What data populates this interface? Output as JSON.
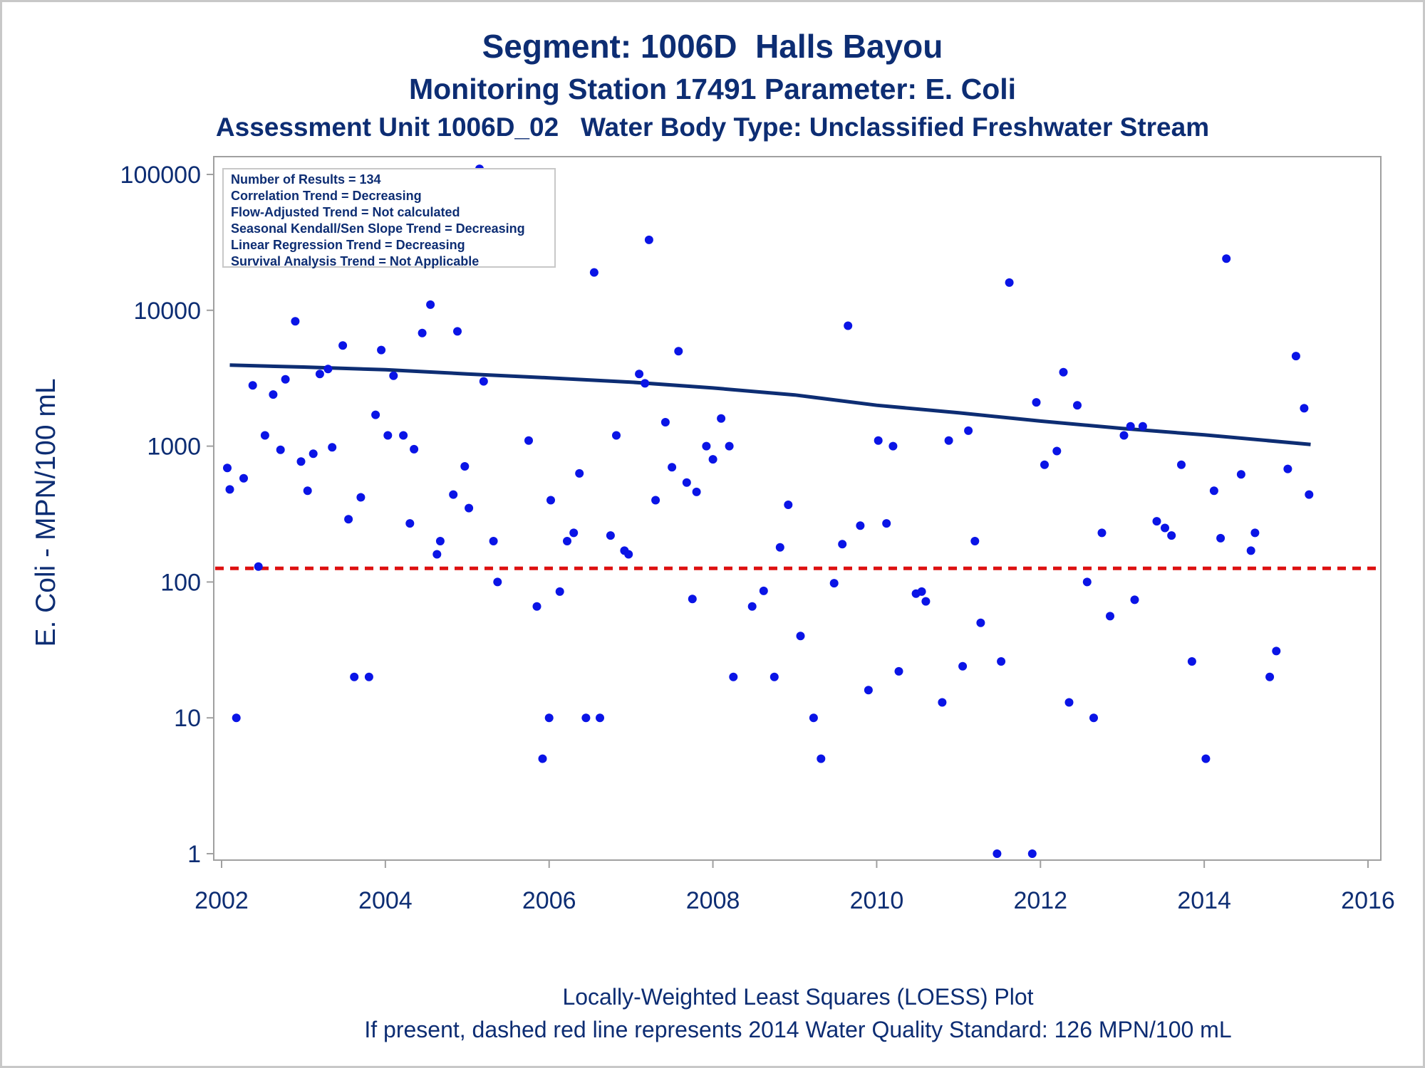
{
  "titles": {
    "line1": "Segment: 1006D  Halls Bayou",
    "line2": "Monitoring Station 17491 Parameter: E. Coli",
    "line3": "Assessment Unit 1006D_02   Water Body Type: Unclassified Freshwater Stream"
  },
  "footnotes": {
    "line1": "Locally-Weighted Least Squares (LOESS) Plot",
    "line2": "If present, dashed red line represents 2014 Water Quality Standard: 126 MPN/100 mL"
  },
  "legend_box": [
    "Number of Results = 134",
    "Correlation Trend = Decreasing",
    "Flow-Adjusted Trend = Not calculated",
    "Seasonal Kendall/Sen Slope Trend = Decreasing",
    "Linear Regression Trend = Decreasing",
    "Survival Analysis Trend = Not Applicable"
  ],
  "colors": {
    "text": "#0d2d73",
    "points": "#0a14e6",
    "loess": "#0d2d73",
    "standard": "#dd1111",
    "axis": "#a0a0a0"
  },
  "chart_data": {
    "type": "scatter",
    "ylabel": "E. Coli - MPN/100 mL",
    "xlabel": "",
    "yscale": "log",
    "xlim": [
      2002,
      2016
    ],
    "ylim": [
      1,
      100000
    ],
    "x_ticks": [
      2002,
      2004,
      2006,
      2008,
      2010,
      2012,
      2014,
      2016
    ],
    "y_ticks": [
      1,
      10,
      100,
      1000,
      10000,
      100000
    ],
    "y_tick_labels": [
      "1",
      "10",
      "100",
      "1000",
      "10000",
      "100000"
    ],
    "grid": false,
    "standard_line": {
      "y": 126,
      "style": "dashed"
    },
    "loess": {
      "x": [
        2002.1,
        2003.0,
        2004.0,
        2005.0,
        2006.0,
        2007.0,
        2008.0,
        2009.0,
        2010.0,
        2011.0,
        2012.0,
        2013.0,
        2014.0,
        2015.3
      ],
      "y": [
        3950,
        3820,
        3650,
        3400,
        3180,
        2960,
        2680,
        2380,
        2000,
        1760,
        1530,
        1350,
        1210,
        1030
      ]
    },
    "points": [
      [
        2002.07,
        690
      ],
      [
        2002.1,
        480
      ],
      [
        2002.18,
        10
      ],
      [
        2002.27,
        580
      ],
      [
        2002.38,
        2800
      ],
      [
        2002.45,
        130
      ],
      [
        2002.53,
        1200
      ],
      [
        2002.63,
        2400
      ],
      [
        2002.72,
        940
      ],
      [
        2002.78,
        3100
      ],
      [
        2002.9,
        8300
      ],
      [
        2002.97,
        770
      ],
      [
        2003.05,
        470
      ],
      [
        2003.12,
        880
      ],
      [
        2003.2,
        3400
      ],
      [
        2003.3,
        3700
      ],
      [
        2003.35,
        980
      ],
      [
        2003.48,
        5500
      ],
      [
        2003.55,
        290
      ],
      [
        2003.62,
        20
      ],
      [
        2003.7,
        420
      ],
      [
        2003.8,
        20
      ],
      [
        2003.88,
        1700
      ],
      [
        2003.95,
        5100
      ],
      [
        2004.03,
        1200
      ],
      [
        2004.1,
        3300
      ],
      [
        2004.22,
        1200
      ],
      [
        2004.3,
        270
      ],
      [
        2004.35,
        950
      ],
      [
        2004.45,
        6800
      ],
      [
        2004.55,
        11000
      ],
      [
        2004.63,
        160
      ],
      [
        2004.67,
        200
      ],
      [
        2004.83,
        440
      ],
      [
        2004.88,
        7000
      ],
      [
        2004.97,
        710
      ],
      [
        2005.02,
        350
      ],
      [
        2005.15,
        110000
      ],
      [
        2005.2,
        3000
      ],
      [
        2005.32,
        200
      ],
      [
        2005.37,
        100
      ],
      [
        2005.75,
        1100
      ],
      [
        2005.85,
        66
      ],
      [
        2005.92,
        5
      ],
      [
        2006.0,
        10
      ],
      [
        2006.02,
        400
      ],
      [
        2006.13,
        85
      ],
      [
        2006.22,
        200
      ],
      [
        2006.3,
        230
      ],
      [
        2006.37,
        630
      ],
      [
        2006.45,
        10
      ],
      [
        2006.55,
        19000
      ],
      [
        2006.62,
        10
      ],
      [
        2006.75,
        220
      ],
      [
        2006.82,
        1200
      ],
      [
        2006.92,
        170
      ],
      [
        2006.97,
        160
      ],
      [
        2007.1,
        3400
      ],
      [
        2007.17,
        2900
      ],
      [
        2007.22,
        33000
      ],
      [
        2007.3,
        400
      ],
      [
        2007.42,
        1500
      ],
      [
        2007.5,
        700
      ],
      [
        2007.58,
        5000
      ],
      [
        2007.68,
        540
      ],
      [
        2007.75,
        75
      ],
      [
        2007.8,
        460
      ],
      [
        2007.92,
        1000
      ],
      [
        2008.0,
        800
      ],
      [
        2008.1,
        1600
      ],
      [
        2008.2,
        1000
      ],
      [
        2008.25,
        20
      ],
      [
        2008.48,
        66
      ],
      [
        2008.62,
        86
      ],
      [
        2008.75,
        20
      ],
      [
        2008.82,
        180
      ],
      [
        2008.92,
        370
      ],
      [
        2009.07,
        40
      ],
      [
        2009.23,
        10
      ],
      [
        2009.32,
        5
      ],
      [
        2009.48,
        98
      ],
      [
        2009.58,
        190
      ],
      [
        2009.65,
        7700
      ],
      [
        2009.8,
        260
      ],
      [
        2009.9,
        16
      ],
      [
        2010.02,
        1100
      ],
      [
        2010.12,
        270
      ],
      [
        2010.2,
        1000
      ],
      [
        2010.27,
        22
      ],
      [
        2010.48,
        82
      ],
      [
        2010.55,
        85
      ],
      [
        2010.6,
        72
      ],
      [
        2010.8,
        13
      ],
      [
        2010.88,
        1100
      ],
      [
        2011.05,
        24
      ],
      [
        2011.12,
        1300
      ],
      [
        2011.2,
        200
      ],
      [
        2011.27,
        50
      ],
      [
        2011.47,
        1
      ],
      [
        2011.52,
        26
      ],
      [
        2011.62,
        16000
      ],
      [
        2011.9,
        1
      ],
      [
        2011.95,
        2100
      ],
      [
        2012.05,
        730
      ],
      [
        2012.2,
        920
      ],
      [
        2012.28,
        3500
      ],
      [
        2012.35,
        13
      ],
      [
        2012.45,
        2000
      ],
      [
        2012.57,
        100
      ],
      [
        2012.65,
        10
      ],
      [
        2012.75,
        230
      ],
      [
        2012.85,
        56
      ],
      [
        2013.02,
        1200
      ],
      [
        2013.1,
        1400
      ],
      [
        2013.15,
        74
      ],
      [
        2013.25,
        1400
      ],
      [
        2013.42,
        280
      ],
      [
        2013.52,
        250
      ],
      [
        2013.6,
        220
      ],
      [
        2013.72,
        730
      ],
      [
        2013.85,
        26
      ],
      [
        2014.02,
        5
      ],
      [
        2014.12,
        470
      ],
      [
        2014.2,
        210
      ],
      [
        2014.27,
        24000
      ],
      [
        2014.45,
        620
      ],
      [
        2014.57,
        170
      ],
      [
        2014.62,
        230
      ],
      [
        2014.8,
        20
      ],
      [
        2014.88,
        31
      ],
      [
        2015.02,
        680
      ],
      [
        2015.12,
        4600
      ],
      [
        2015.22,
        1900
      ],
      [
        2015.28,
        440
      ]
    ]
  }
}
